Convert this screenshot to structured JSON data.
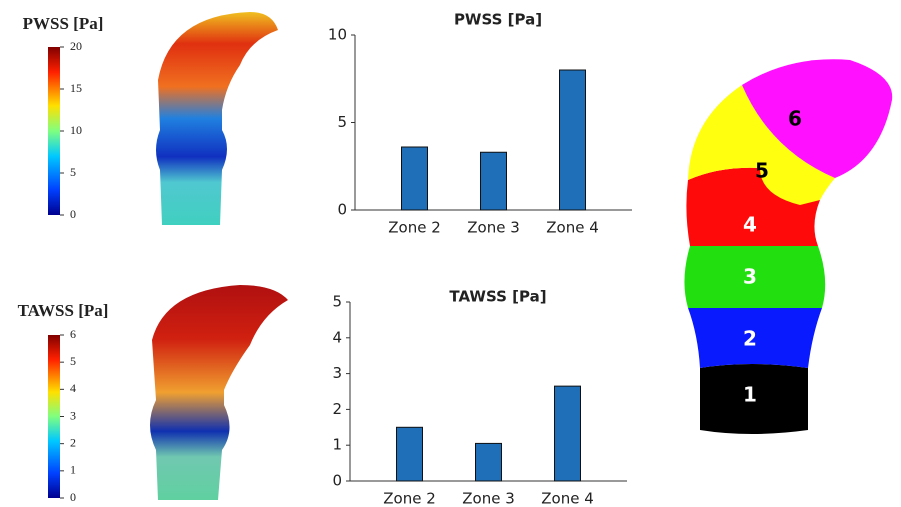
{
  "chart_data": [
    {
      "type": "bar",
      "title": "PWSS [Pa]",
      "categories": [
        "Zone 2",
        "Zone 3",
        "Zone 4"
      ],
      "values": [
        3.6,
        3.3,
        8.0
      ],
      "color": "#1f6fb8",
      "ylim": [
        0,
        10
      ],
      "yticks": [
        0,
        5,
        10
      ]
    },
    {
      "type": "bar",
      "title": "TAWSS [Pa]",
      "categories": [
        "Zone 2",
        "Zone 3",
        "Zone 4"
      ],
      "values": [
        1.5,
        1.05,
        2.65
      ],
      "color": "#1f6fb8",
      "ylim": [
        0,
        5
      ],
      "yticks": [
        0,
        1,
        2,
        3,
        4,
        5
      ]
    }
  ],
  "colorbars": [
    {
      "title": "PWSS [Pa]",
      "ticks": [
        0,
        5,
        10,
        15,
        20
      ]
    },
    {
      "title": "TAWSS [Pa]",
      "ticks": [
        0,
        1,
        2,
        3,
        4,
        5,
        6
      ]
    }
  ],
  "zones": {
    "labels": [
      "1",
      "2",
      "3",
      "4",
      "5",
      "6"
    ]
  }
}
